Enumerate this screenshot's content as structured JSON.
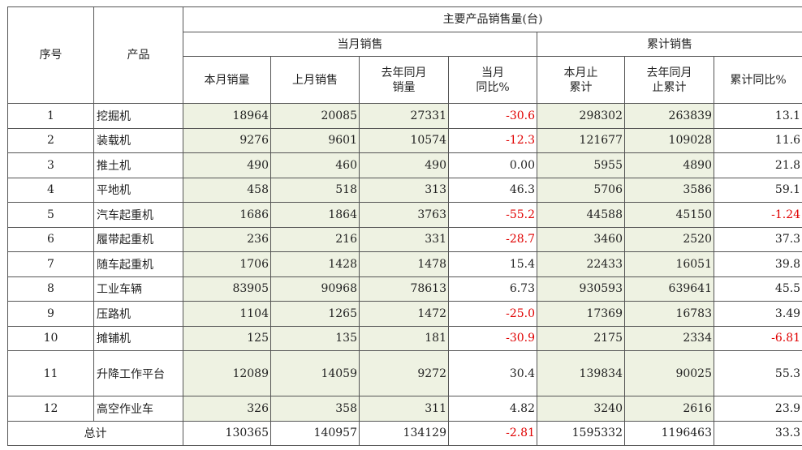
{
  "table": {
    "title": "主要产品销售量(台)",
    "col_index": "序号",
    "col_product": "产品",
    "group_month": "当月销售",
    "group_cumulative": "累计销售",
    "headers": [
      "本月销量",
      "上月销售",
      "去年同月\n销量",
      "当月\n同比%",
      "本月止\n累计",
      "去年同月\n止累计",
      "累计同比%"
    ],
    "rows": [
      {
        "idx": "1",
        "name": "挖掘机",
        "cur": "18964",
        "prev": "20085",
        "ly": "27331",
        "yoy": "-30.6",
        "cum": "298302",
        "lycum": "263839",
        "cumyoy": "13.1"
      },
      {
        "idx": "2",
        "name": "装载机",
        "cur": "9276",
        "prev": "9601",
        "ly": "10574",
        "yoy": "-12.3",
        "cum": "121677",
        "lycum": "109028",
        "cumyoy": "11.6"
      },
      {
        "idx": "3",
        "name": "推土机",
        "cur": "490",
        "prev": "460",
        "ly": "490",
        "yoy": "0.00",
        "cum": "5955",
        "lycum": "4890",
        "cumyoy": "21.8"
      },
      {
        "idx": "4",
        "name": "平地机",
        "cur": "458",
        "prev": "518",
        "ly": "313",
        "yoy": "46.3",
        "cum": "5706",
        "lycum": "3586",
        "cumyoy": "59.1"
      },
      {
        "idx": "5",
        "name": "汽车起重机",
        "cur": "1686",
        "prev": "1864",
        "ly": "3763",
        "yoy": "-55.2",
        "cum": "44588",
        "lycum": "45150",
        "cumyoy": "-1.24"
      },
      {
        "idx": "6",
        "name": "履带起重机",
        "cur": "236",
        "prev": "216",
        "ly": "331",
        "yoy": "-28.7",
        "cum": "3460",
        "lycum": "2520",
        "cumyoy": "37.3"
      },
      {
        "idx": "7",
        "name": "随车起重机",
        "cur": "1706",
        "prev": "1428",
        "ly": "1478",
        "yoy": "15.4",
        "cum": "22433",
        "lycum": "16051",
        "cumyoy": "39.8"
      },
      {
        "idx": "8",
        "name": "工业车辆",
        "cur": "83905",
        "prev": "90968",
        "ly": "78613",
        "yoy": "6.73",
        "cum": "930593",
        "lycum": "639641",
        "cumyoy": "45.5"
      },
      {
        "idx": "9",
        "name": "压路机",
        "cur": "1104",
        "prev": "1265",
        "ly": "1472",
        "yoy": "-25.0",
        "cum": "17369",
        "lycum": "16783",
        "cumyoy": "3.49"
      },
      {
        "idx": "10",
        "name": "摊铺机",
        "cur": "125",
        "prev": "135",
        "ly": "181",
        "yoy": "-30.9",
        "cum": "2175",
        "lycum": "2334",
        "cumyoy": "-6.81"
      },
      {
        "idx": "11",
        "name": "升降工作平台",
        "cur": "12089",
        "prev": "14059",
        "ly": "9272",
        "yoy": "30.4",
        "cum": "139834",
        "lycum": "90025",
        "cumyoy": "55.3"
      },
      {
        "idx": "12",
        "name": "高空作业车",
        "cur": "326",
        "prev": "358",
        "ly": "311",
        "yoy": "4.82",
        "cum": "3240",
        "lycum": "2616",
        "cumyoy": "23.9"
      }
    ],
    "total": {
      "label": "总计",
      "cur": "130365",
      "prev": "140957",
      "ly": "134129",
      "yoy": "-2.81",
      "cum": "1595332",
      "lycum": "1196463",
      "cumyoy": "33.3"
    }
  },
  "colors": {
    "highlight_bg": "#eef2e2",
    "negative": "#e00000",
    "border": "#555555"
  }
}
